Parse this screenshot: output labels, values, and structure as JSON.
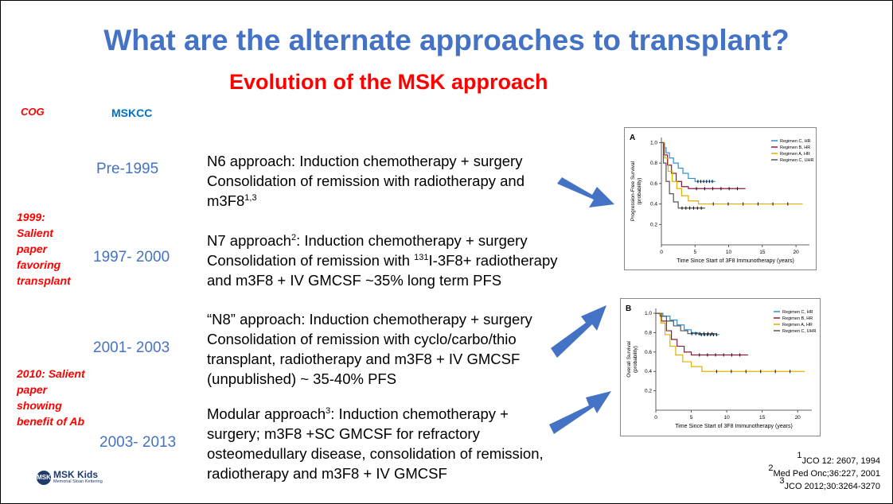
{
  "slide": {
    "title": "What are the alternate approaches to transplant?",
    "subtitle": "Evolution of the MSK approach",
    "col_cog": "COG",
    "col_mskcc": "MSKCC",
    "notes": [
      {
        "text": "1999:\nSalient\npaper\nfavoring\ntransplant"
      },
      {
        "text": "2010: Salient\npaper\nshowing\nbenefit of Ab"
      }
    ],
    "rows": [
      {
        "period": "Pre-1995",
        "lines": [
          {
            "pre": "",
            "sup1": "",
            "text": "N6 approach: Induction chemotherapy + surgery",
            "sup2": ""
          },
          {
            "pre": "",
            "sup1": "",
            "text": "Consolidation of remission with radiotherapy and",
            "sup2": ""
          },
          {
            "pre": "",
            "sup1": "",
            "text": "m3F8",
            "sup2": "1,3"
          }
        ]
      },
      {
        "period": "1997- 2000",
        "lines": [
          {
            "pre": "N7 approach",
            "sup1": "2",
            "text": ": Induction chemotherapy + surgery",
            "sup2": ""
          },
          {
            "pre": "Consolidation of remission with ",
            "sup1": "131",
            "text": "I-3F8+ radiotherapy",
            "sup2": ""
          },
          {
            "pre": "",
            "sup1": "",
            "text": "and m3F8 + IV GMCSF ~35% long term PFS",
            "sup2": ""
          }
        ]
      },
      {
        "period": "2001- 2003",
        "lines": [
          {
            "pre": "",
            "sup1": "",
            "text": "“N8” approach: Induction chemotherapy + surgery",
            "sup2": ""
          },
          {
            "pre": "",
            "sup1": "",
            "text": "Consolidation of remission with cyclo/carbo/thio",
            "sup2": ""
          },
          {
            "pre": "",
            "sup1": "",
            "text": "transplant, radiotherapy and m3F8 + IV GMCSF",
            "sup2": ""
          },
          {
            "pre": "",
            "sup1": "",
            "text": "(unpublished) ~ 35-40% PFS",
            "sup2": ""
          }
        ]
      },
      {
        "period": "2003- 2013",
        "lines": [
          {
            "pre": "Modular approach",
            "sup1": "3",
            "text": ": Induction chemotherapy +",
            "sup2": ""
          },
          {
            "pre": "",
            "sup1": "",
            "text": "surgery; m3F8 +SC GMCSF for refractory",
            "sup2": ""
          },
          {
            "pre": "",
            "sup1": "",
            "text": "osteomedullary disease, consolidation of remission,",
            "sup2": ""
          },
          {
            "pre": "",
            "sup1": "",
            "text": "radiotherapy and m3F8 + IV GMCSF",
            "sup2": ""
          }
        ]
      }
    ],
    "references": [
      {
        "sup": "1",
        "text": "JCO 12: 2607, 1994"
      },
      {
        "sup": "2",
        "text": "Med Ped Onc;36:227, 2001"
      },
      {
        "sup": "3",
        "text": "JCO 2012;30:3264-3270"
      }
    ],
    "logo": {
      "main": "MSK Kids",
      "sub": "Memorial Sloan Kettering",
      "mark": "MSK"
    },
    "colors": {
      "title": "#4472C4",
      "subtitle": "#FF0000",
      "arrow": "#4472C4",
      "period": "#4472C4"
    }
  },
  "chart_data": [
    {
      "type": "line",
      "panel": "A",
      "xlabel": "Time Since Start of 3F8 Immunotherapy (years)",
      "ylabel": "Progression-Free Survival (probability)",
      "xlim": [
        0,
        22
      ],
      "ylim": [
        0,
        1.05
      ],
      "xticks": [
        0,
        5,
        10,
        15,
        20
      ],
      "yticks": [
        0.2,
        0.4,
        0.6,
        0.8,
        1.0
      ],
      "legend_position": "top-right",
      "series": [
        {
          "name": "Regimen C, HR",
          "color": "#2E8FD8",
          "steps": [
            [
              0,
              1.0
            ],
            [
              0.3,
              0.95
            ],
            [
              0.7,
              0.9
            ],
            [
              1.2,
              0.85
            ],
            [
              1.8,
              0.8
            ],
            [
              2.5,
              0.75
            ],
            [
              3.2,
              0.7
            ],
            [
              4,
              0.65
            ],
            [
              5,
              0.62
            ],
            [
              8,
              0.62
            ]
          ]
        },
        {
          "name": "Regimen B, HR",
          "color": "#8B1A3A",
          "steps": [
            [
              0,
              1.0
            ],
            [
              0.4,
              0.88
            ],
            [
              0.9,
              0.78
            ],
            [
              1.5,
              0.7
            ],
            [
              2.2,
              0.62
            ],
            [
              3,
              0.57
            ],
            [
              4,
              0.55
            ],
            [
              12.5,
              0.55
            ]
          ]
        },
        {
          "name": "Regimen A, HR",
          "color": "#E0B000",
          "steps": [
            [
              0,
              1.0
            ],
            [
              0.5,
              0.85
            ],
            [
              1,
              0.72
            ],
            [
              1.6,
              0.62
            ],
            [
              2.3,
              0.55
            ],
            [
              3,
              0.48
            ],
            [
              4,
              0.43
            ],
            [
              5.5,
              0.4
            ],
            [
              21,
              0.4
            ]
          ]
        },
        {
          "name": "Regimen C, UHR",
          "color": "#555555",
          "steps": [
            [
              0,
              1.0
            ],
            [
              0.3,
              0.8
            ],
            [
              0.7,
              0.62
            ],
            [
              1.2,
              0.5
            ],
            [
              1.8,
              0.42
            ],
            [
              2.5,
              0.36
            ],
            [
              6.5,
              0.36
            ]
          ]
        }
      ]
    },
    {
      "type": "line",
      "panel": "B",
      "xlabel": "Time Since Start of 3F8 Immunotherapy (years)",
      "ylabel": "Overall Survival (probability)",
      "xlim": [
        0,
        22
      ],
      "ylim": [
        0,
        1.05
      ],
      "xticks": [
        0,
        5,
        10,
        15,
        20
      ],
      "yticks": [
        0.2,
        0.4,
        0.6,
        0.8,
        1.0
      ],
      "legend_position": "top-right",
      "series": [
        {
          "name": "Regimen C, HR",
          "color": "#2E8FD8",
          "steps": [
            [
              0,
              1.0
            ],
            [
              1,
              0.97
            ],
            [
              2,
              0.93
            ],
            [
              3,
              0.88
            ],
            [
              4,
              0.83
            ],
            [
              5,
              0.8
            ],
            [
              6,
              0.78
            ],
            [
              9,
              0.78
            ]
          ]
        },
        {
          "name": "Regimen B, HR",
          "color": "#8B1A3A",
          "steps": [
            [
              0,
              1.0
            ],
            [
              0.8,
              0.92
            ],
            [
              1.5,
              0.82
            ],
            [
              2.2,
              0.73
            ],
            [
              3,
              0.66
            ],
            [
              4,
              0.6
            ],
            [
              5,
              0.57
            ],
            [
              13,
              0.57
            ]
          ]
        },
        {
          "name": "Regimen A, HR",
          "color": "#E0B000",
          "steps": [
            [
              0,
              1.0
            ],
            [
              0.7,
              0.9
            ],
            [
              1.3,
              0.78
            ],
            [
              2,
              0.66
            ],
            [
              2.8,
              0.57
            ],
            [
              3.8,
              0.5
            ],
            [
              5,
              0.45
            ],
            [
              6.5,
              0.4
            ],
            [
              21,
              0.4
            ]
          ]
        },
        {
          "name": "Regimen C, UHR",
          "color": "#555555",
          "steps": [
            [
              0,
              1.0
            ],
            [
              0.6,
              0.97
            ],
            [
              1.5,
              0.92
            ],
            [
              2.5,
              0.87
            ],
            [
              3.5,
              0.82
            ],
            [
              4.5,
              0.79
            ],
            [
              8.5,
              0.79
            ]
          ]
        }
      ]
    }
  ]
}
